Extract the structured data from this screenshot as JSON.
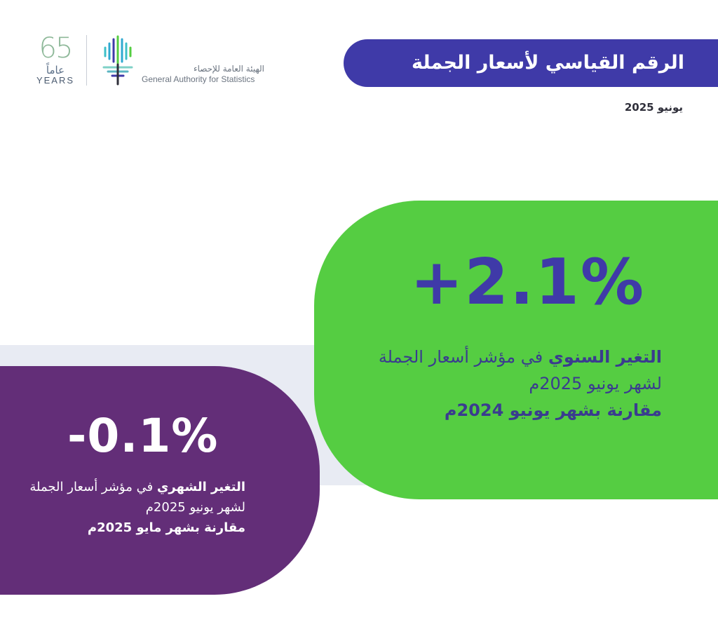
{
  "logo": {
    "years_number": "65",
    "years_arabic": "عاماً",
    "years_english": "YEARS",
    "authority_arabic": "الهيئة العامة للإحصاء",
    "authority_english": "General Authority for Statistics"
  },
  "header": {
    "title": "الرقم القياسي لأسعار الجملة",
    "date": "يونيو 2025"
  },
  "annual": {
    "value": "+2.1%",
    "desc_bold": "التغير السنوي",
    "desc_rest": " في مؤشر أسعار الجملة لشهر يونيو 2025م",
    "desc_compare": "مقارنة بشهر يونيو 2024م"
  },
  "monthly": {
    "value": "-0.1%",
    "desc_bold": "التغير الشهري",
    "desc_rest": " في مؤشر أسعار الجملة لشهر يونيو 2025م",
    "desc_compare": "مقارنة بشهر مايو 2025م"
  },
  "colors": {
    "title_pill": "#3f3aa8",
    "green_card": "#55cd42",
    "purple_card": "#632e78",
    "band": "#e8ebf3"
  }
}
